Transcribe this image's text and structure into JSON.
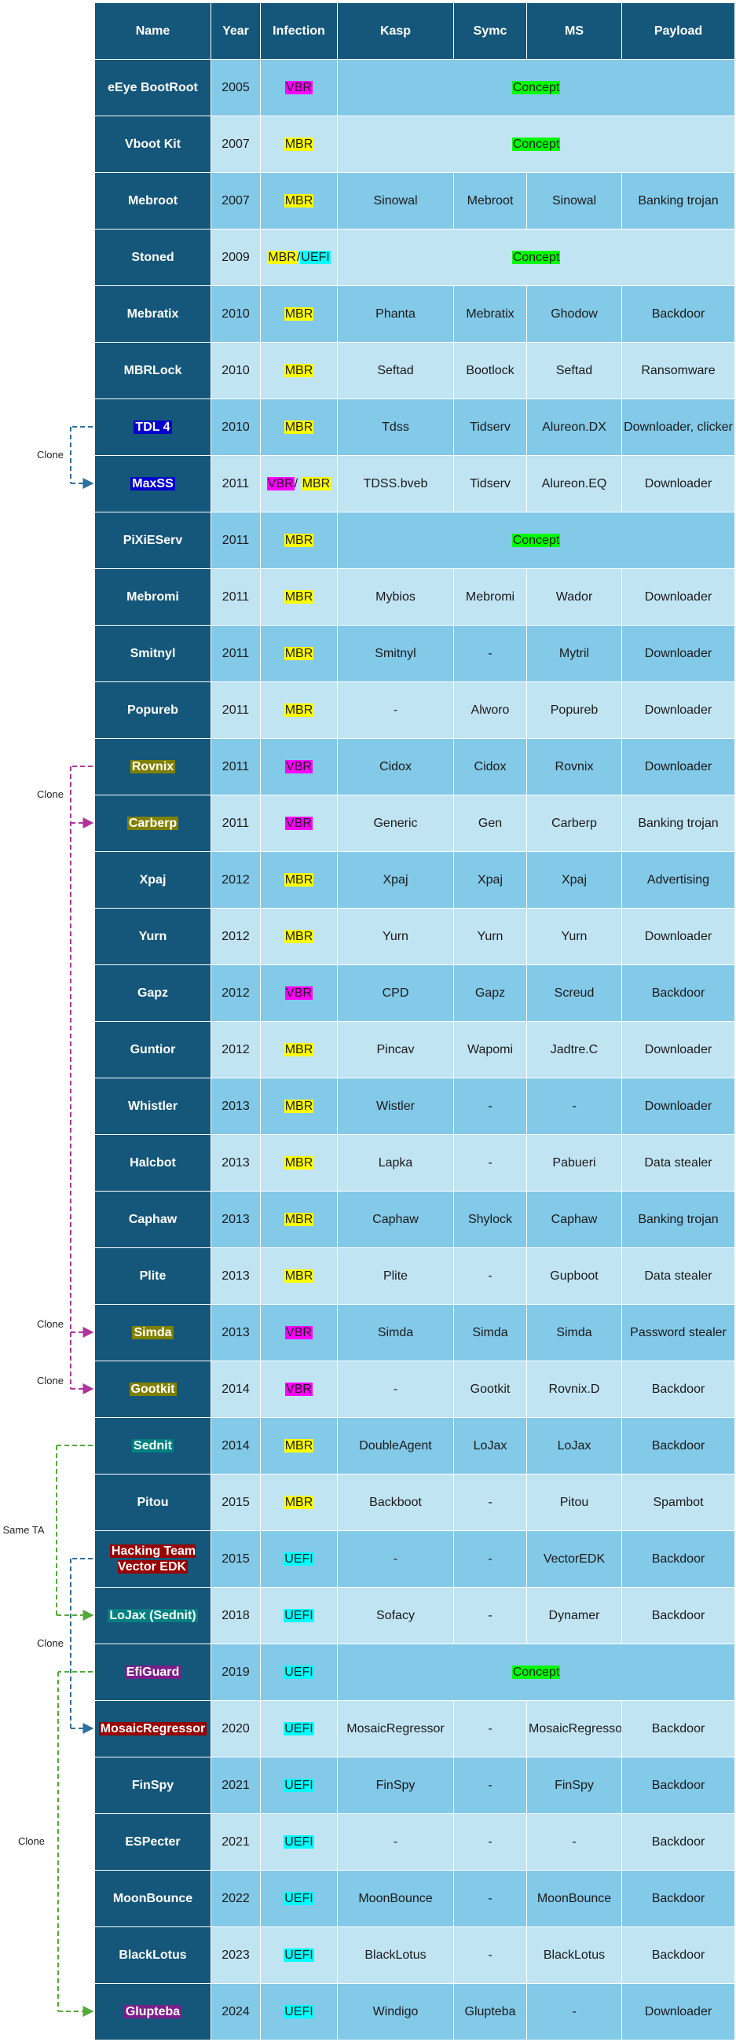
{
  "header": {
    "name": "Name",
    "year": "Year",
    "infection": "Infection",
    "kasp": "Kasp",
    "symc": "Symc",
    "ms": "MS",
    "payload": "Payload"
  },
  "colors": {
    "header_bg": "#15577a",
    "row_dark": "#83c9e8",
    "row_light": "#c1e4f3",
    "mbr": "#ffff00",
    "vbr": "#ff00ff",
    "uefi": "#00ffff",
    "concept": "#00ff00",
    "clone_blue_line": "#2e6f9e",
    "clone_magenta_line": "#b0359a",
    "clone_green_line": "#56a83a"
  },
  "rows": [
    {
      "name": "eEye BootRoot",
      "year": "2005",
      "infection": [
        {
          "text": "VBR",
          "type": "vbr"
        }
      ],
      "concept": "Concept"
    },
    {
      "name": "Vboot Kit",
      "year": "2007",
      "infection": [
        {
          "text": "MBR",
          "type": "mbr"
        }
      ],
      "concept": "Concept"
    },
    {
      "name": "Mebroot",
      "year": "2007",
      "infection": [
        {
          "text": "MBR",
          "type": "mbr"
        }
      ],
      "kasp": "Sinowal",
      "symc": "Mebroot",
      "ms": "Sinowal",
      "payload": "Banking trojan"
    },
    {
      "name": "Stoned",
      "year": "2009",
      "infection": [
        {
          "text": "MBR",
          "type": "mbr"
        },
        {
          "text": "/",
          "type": "sep"
        },
        {
          "text": "UEFI",
          "type": "uefi"
        }
      ],
      "concept": "Concept"
    },
    {
      "name": "Mebratix",
      "year": "2010",
      "infection": [
        {
          "text": "MBR",
          "type": "mbr"
        }
      ],
      "kasp": "Phanta",
      "symc": "Mebratix",
      "ms": "Ghodow",
      "payload": "Backdoor"
    },
    {
      "name": "MBRLock",
      "year": "2010",
      "infection": [
        {
          "text": "MBR",
          "type": "mbr"
        }
      ],
      "kasp": "Seftad",
      "symc": "Bootlock",
      "ms": "Seftad",
      "payload": "Ransomware"
    },
    {
      "name": "TDL 4",
      "name_hl": "blue",
      "year": "2010",
      "infection": [
        {
          "text": "MBR",
          "type": "mbr"
        }
      ],
      "kasp": "Tdss",
      "symc": "Tidserv",
      "ms": "Alureon.DX",
      "payload": "Downloader, clicker"
    },
    {
      "name": "MaxSS",
      "name_hl": "blue",
      "year": "2011",
      "infection": [
        {
          "text": "VBR",
          "type": "vbr"
        },
        {
          "text": "/ ",
          "type": "sep"
        },
        {
          "text": "MBR",
          "type": "mbr"
        }
      ],
      "kasp": "TDSS.bveb",
      "symc": "Tidserv",
      "ms": "Alureon.EQ",
      "payload": "Downloader"
    },
    {
      "name": "PiXiEServ",
      "year": "2011",
      "infection": [
        {
          "text": "MBR",
          "type": "mbr"
        }
      ],
      "concept": "Concept"
    },
    {
      "name": "Mebromi",
      "year": "2011",
      "infection": [
        {
          "text": "MBR",
          "type": "mbr"
        }
      ],
      "kasp": "Mybios",
      "symc": "Mebromi",
      "ms": "Wador",
      "payload": "Downloader"
    },
    {
      "name": "Smitnyl",
      "year": "2011",
      "infection": [
        {
          "text": "MBR",
          "type": "mbr"
        }
      ],
      "kasp": "Smitnyl",
      "symc": "-",
      "ms": "Mytril",
      "payload": "Downloader"
    },
    {
      "name": "Popureb",
      "year": "2011",
      "infection": [
        {
          "text": "MBR",
          "type": "mbr"
        }
      ],
      "kasp": "-",
      "symc": "Alworo",
      "ms": "Popureb",
      "payload": "Downloader"
    },
    {
      "name": "Rovnix",
      "name_hl": "olive",
      "year": "2011",
      "infection": [
        {
          "text": "VBR",
          "type": "vbr"
        }
      ],
      "kasp": "Cidox",
      "symc": "Cidox",
      "ms": "Rovnix",
      "payload": "Downloader"
    },
    {
      "name": "Carberp",
      "name_hl": "olive",
      "year": "2011",
      "infection": [
        {
          "text": "VBR",
          "type": "vbr"
        }
      ],
      "kasp": "Generic",
      "symc": "Gen",
      "ms": "Carberp",
      "payload": "Banking trojan"
    },
    {
      "name": "Xpaj",
      "year": "2012",
      "infection": [
        {
          "text": "MBR",
          "type": "mbr"
        }
      ],
      "kasp": "Xpaj",
      "symc": "Xpaj",
      "ms": "Xpaj",
      "payload": "Advertising"
    },
    {
      "name": "Yurn",
      "year": "2012",
      "infection": [
        {
          "text": "MBR",
          "type": "mbr"
        }
      ],
      "kasp": "Yurn",
      "symc": "Yurn",
      "ms": "Yurn",
      "payload": "Downloader"
    },
    {
      "name": "Gapz",
      "year": "2012",
      "infection": [
        {
          "text": "VBR",
          "type": "vbr"
        }
      ],
      "kasp": "CPD",
      "symc": "Gapz",
      "ms": "Screud",
      "payload": "Backdoor"
    },
    {
      "name": "Guntior",
      "year": "2012",
      "infection": [
        {
          "text": "MBR",
          "type": "mbr"
        }
      ],
      "kasp": "Pincav",
      "symc": "Wapomi",
      "ms": "Jadtre.C",
      "payload": "Downloader"
    },
    {
      "name": "Whistler",
      "year": "2013",
      "infection": [
        {
          "text": "MBR",
          "type": "mbr"
        }
      ],
      "kasp": "Wistler",
      "symc": "-",
      "ms": "-",
      "payload": "Downloader"
    },
    {
      "name": "Halcbot",
      "year": "2013",
      "infection": [
        {
          "text": "MBR",
          "type": "mbr"
        }
      ],
      "kasp": "Lapka",
      "symc": "-",
      "ms": "Pabueri",
      "payload": "Data stealer"
    },
    {
      "name": "Caphaw",
      "year": "2013",
      "infection": [
        {
          "text": "MBR",
          "type": "mbr"
        }
      ],
      "kasp": "Caphaw",
      "symc": "Shylock",
      "ms": "Caphaw",
      "payload": "Banking trojan"
    },
    {
      "name": "Plite",
      "year": "2013",
      "infection": [
        {
          "text": "MBR",
          "type": "mbr"
        }
      ],
      "kasp": "Plite",
      "symc": "-",
      "ms": "Gupboot",
      "payload": "Data stealer"
    },
    {
      "name": "Simda",
      "name_hl": "olive",
      "year": "2013",
      "infection": [
        {
          "text": "VBR",
          "type": "vbr"
        }
      ],
      "kasp": "Simda",
      "symc": "Simda",
      "ms": "Simda",
      "payload": "Password stealer"
    },
    {
      "name": "Gootkit",
      "name_hl": "olive",
      "year": "2014",
      "infection": [
        {
          "text": "VBR",
          "type": "vbr"
        }
      ],
      "kasp": "-",
      "symc": "Gootkit",
      "ms": "Rovnix.D",
      "payload": "Backdoor"
    },
    {
      "name": "Sednit",
      "name_hl": "teal",
      "year": "2014",
      "infection": [
        {
          "text": "MBR",
          "type": "mbr"
        }
      ],
      "kasp": "DoubleAgent",
      "symc": "LoJax",
      "ms": "LoJax",
      "payload": "Backdoor"
    },
    {
      "name": "Pitou",
      "year": "2015",
      "infection": [
        {
          "text": "MBR",
          "type": "mbr"
        }
      ],
      "kasp": "Backboot",
      "symc": "-",
      "ms": "Pitou",
      "payload": "Spambot"
    },
    {
      "name": "Hacking Team Vector EDK",
      "name_hl": "red",
      "year": "2015",
      "infection": [
        {
          "text": "UEFI",
          "type": "uefi"
        }
      ],
      "kasp": "-",
      "symc": "-",
      "ms": "VectorEDK",
      "payload": "Backdoor"
    },
    {
      "name": "LoJax (Sednit)",
      "name_hl": "teal",
      "year": "2018",
      "infection": [
        {
          "text": "UEFI",
          "type": "uefi"
        }
      ],
      "kasp": "Sofacy",
      "symc": "-",
      "ms": "Dynamer",
      "payload": "Backdoor"
    },
    {
      "name": "EfiGuard",
      "name_hl": "purple",
      "year": "2019",
      "infection": [
        {
          "text": "UEFI",
          "type": "uefi"
        }
      ],
      "concept": "Concept"
    },
    {
      "name": "MosaicRegressor",
      "name_hl": "red",
      "year": "2020",
      "infection": [
        {
          "text": "UEFI",
          "type": "uefi"
        }
      ],
      "kasp": "MosaicRegressor",
      "symc": "-",
      "ms": "MosaicRegressor",
      "payload": "Backdoor"
    },
    {
      "name": "FinSpy",
      "year": "2021",
      "infection": [
        {
          "text": "UEFI",
          "type": "uefi"
        }
      ],
      "kasp": "FinSpy",
      "symc": "-",
      "ms": "FinSpy",
      "payload": "Backdoor"
    },
    {
      "name": "ESPecter",
      "year": "2021",
      "infection": [
        {
          "text": "UEFI",
          "type": "uefi"
        }
      ],
      "kasp": "-",
      "symc": "-",
      "ms": "-",
      "payload": "Backdoor"
    },
    {
      "name": "MoonBounce",
      "year": "2022",
      "infection": [
        {
          "text": "UEFI",
          "type": "uefi"
        }
      ],
      "kasp": "MoonBounce",
      "symc": "-",
      "ms": "MoonBounce",
      "payload": "Backdoor"
    },
    {
      "name": "BlackLotus",
      "year": "2023",
      "infection": [
        {
          "text": "UEFI",
          "type": "uefi"
        }
      ],
      "kasp": "BlackLotus",
      "symc": "-",
      "ms": "BlackLotus",
      "payload": "Backdoor"
    },
    {
      "name": "Glupteba",
      "name_hl": "purple",
      "year": "2024",
      "infection": [
        {
          "text": "UEFI",
          "type": "uefi"
        }
      ],
      "kasp": "Windigo",
      "symc": "Glupteba",
      "ms": "-",
      "payload": "Downloader"
    }
  ],
  "relations": [
    {
      "label": "Clone",
      "from": 6,
      "to": 7,
      "color": "blue",
      "lane": 1
    },
    {
      "label": "Clone",
      "from": 12,
      "to": 13,
      "color": "magenta",
      "lane": 1
    },
    {
      "label": "Clone",
      "from": 12,
      "to": 22,
      "color": "magenta",
      "lane": 1
    },
    {
      "label": "Clone",
      "from": 12,
      "to": 23,
      "color": "magenta",
      "lane": 1
    },
    {
      "label": "Same TA",
      "from": 24,
      "to": 27,
      "color": "green",
      "lane": 2
    },
    {
      "label": "Clone",
      "from": 26,
      "to": 29,
      "color": "blue",
      "lane": 1
    },
    {
      "label": "Clone",
      "from": 28,
      "to": 34,
      "color": "green",
      "lane": 3
    }
  ]
}
